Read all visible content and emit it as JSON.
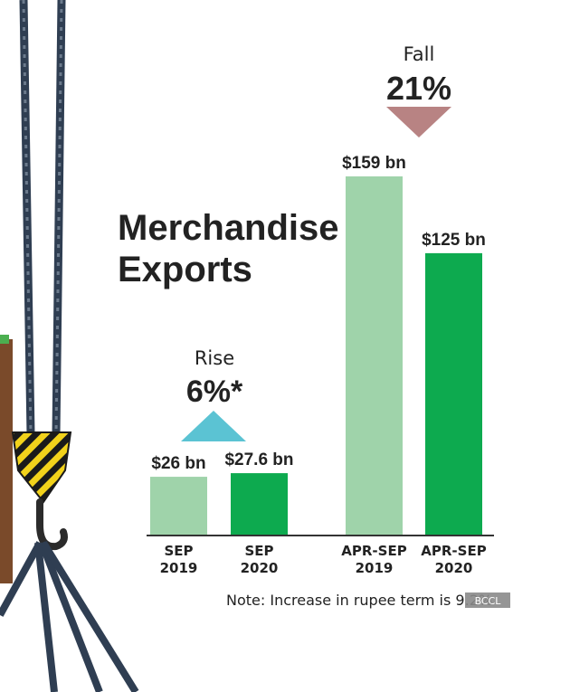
{
  "title_line1": "Merchandise",
  "title_line2": "Exports",
  "note": "Note: Increase in rupee term is 9.2%",
  "watermark": "BCCL",
  "colors": {
    "light_green": "#9fd3aa",
    "dark_green": "#0daa4f",
    "rise_arrow": "#5bc3d3",
    "fall_arrow": "#b88383",
    "text": "#222222"
  },
  "chart_data": {
    "type": "bar",
    "categories": [
      "SEP 2019",
      "SEP 2020",
      "APR-SEP 2019",
      "APR-SEP 2020"
    ],
    "values": [
      26,
      27.6,
      159,
      125
    ],
    "unit": "$ bn",
    "value_labels": [
      "$26 bn",
      "$27.6 bn",
      "$159 bn",
      "$125 bn"
    ],
    "category_labels": [
      [
        "SEP",
        "2019"
      ],
      [
        "SEP",
        "2020"
      ],
      [
        "APR-SEP",
        "2019"
      ],
      [
        "APR-SEP",
        "2020"
      ]
    ],
    "ylim": [
      0,
      159
    ],
    "annotations": [
      {
        "word": "Rise",
        "value": "6%*",
        "direction": "up",
        "group": "SEP"
      },
      {
        "word": "Fall",
        "value": "21%",
        "direction": "down",
        "group": "APR-SEP"
      }
    ],
    "grid": false
  }
}
